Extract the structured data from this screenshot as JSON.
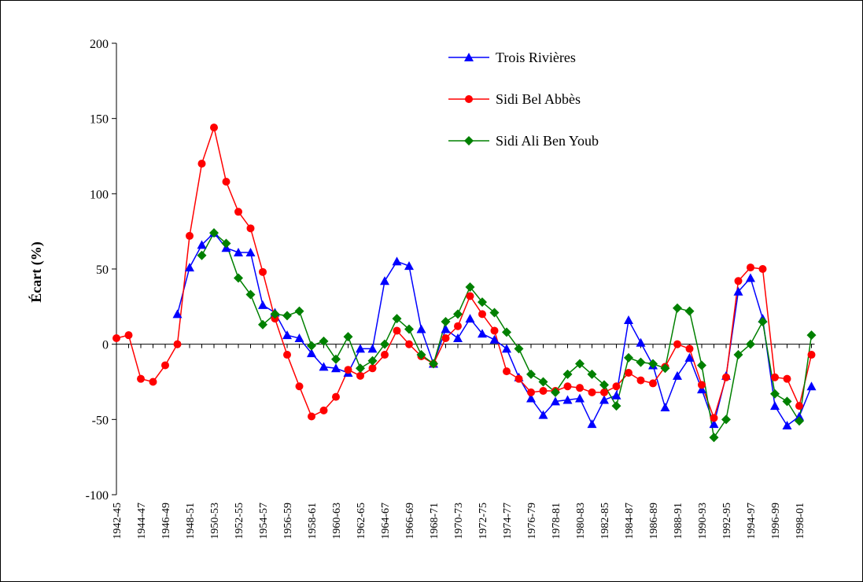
{
  "chart_data": {
    "type": "line",
    "y_label": "Écart (%)",
    "categories": [
      "1942-45",
      null,
      "1944-47",
      null,
      "1946-49",
      null,
      "1948-51",
      null,
      "1950-53",
      null,
      "1952-55",
      null,
      "1954-57",
      null,
      "1956-59",
      null,
      "1958-61",
      null,
      "1960-63",
      null,
      "1962-65",
      null,
      "1964-67",
      null,
      "1966-69",
      null,
      "1968-71",
      null,
      "1970-73",
      null,
      "1972-75",
      null,
      "1974-77",
      null,
      "1976-79",
      null,
      "1978-81",
      null,
      "1980-83",
      null,
      "1982-85",
      null,
      "1984-87",
      null,
      "1986-89",
      null,
      "1988-91",
      null,
      "1990-93",
      null,
      "1992-95",
      null,
      "1994-97",
      null,
      "1996-99",
      null,
      "1998-01",
      null
    ],
    "series": [
      {
        "name": "Trois Rivières",
        "color": "#0000ff",
        "marker": "triangle",
        "values": [
          null,
          null,
          null,
          null,
          null,
          20,
          51,
          66,
          74,
          64,
          61,
          61,
          26,
          21,
          6,
          4,
          -6,
          -15,
          -16,
          -19,
          -3,
          -3,
          42,
          55,
          52,
          10,
          -13,
          10,
          4,
          17,
          7,
          3,
          -3,
          -22,
          -36,
          -47,
          -38,
          -37,
          -36,
          -53,
          -37,
          -34,
          16,
          1,
          -14,
          -42,
          -21,
          -9,
          -30,
          -53,
          -21,
          35,
          44,
          17,
          -41,
          -54,
          -48,
          -28
        ]
      },
      {
        "name": "Sidi Bel Abbès",
        "color": "#ff0000",
        "marker": "circle",
        "values": [
          4,
          6,
          -23,
          -25,
          -14,
          0,
          72,
          120,
          144,
          108,
          88,
          77,
          48,
          17,
          -7,
          -28,
          -48,
          -44,
          -35,
          -17,
          -21,
          -16,
          -7,
          9,
          0,
          -8,
          -13,
          4,
          12,
          32,
          20,
          9,
          -18,
          -23,
          -32,
          -31,
          -31,
          -28,
          -29,
          -32,
          -32,
          -28,
          -19,
          -24,
          -26,
          -15,
          0,
          -3,
          -27,
          -49,
          -22,
          42,
          51,
          50,
          -22,
          -23,
          -41,
          -7
        ]
      },
      {
        "name": "Sidi Ali Ben Youb",
        "color": "#008000",
        "marker": "diamond",
        "values": [
          null,
          null,
          null,
          null,
          null,
          null,
          null,
          59,
          74,
          67,
          44,
          33,
          13,
          20,
          19,
          22,
          -1,
          2,
          -10,
          5,
          -16,
          -11,
          0,
          17,
          10,
          -7,
          -13,
          15,
          20,
          38,
          28,
          21,
          8,
          -3,
          -20,
          -25,
          -32,
          -20,
          -13,
          -20,
          -27,
          -41,
          -9,
          -12,
          -13,
          -16,
          24,
          22,
          -14,
          -62,
          -50,
          -7,
          0,
          15,
          -33,
          -38,
          -51,
          6
        ]
      }
    ],
    "ylim": [
      -100,
      200
    ],
    "yticks": [
      -100,
      -50,
      0,
      50,
      100,
      150,
      200
    ],
    "legend": "top-right"
  }
}
